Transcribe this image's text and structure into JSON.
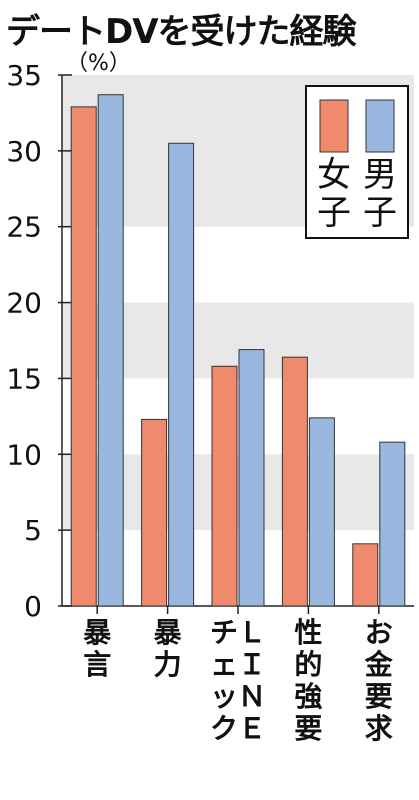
{
  "title": "デートDVを受けた経験",
  "chart_data": {
    "type": "bar",
    "title": "デートDVを受けた経験",
    "unit_label": "（%）",
    "categories": [
      "暴言",
      "暴力",
      "ＬＩＮＥチェック",
      "性的強要",
      "お金要求"
    ],
    "category_lines": [
      [
        "暴言"
      ],
      [
        "暴力"
      ],
      [
        "チェック",
        "ＬＩＮＥ"
      ],
      [
        "性的強要"
      ],
      [
        "お金要求"
      ]
    ],
    "series": [
      {
        "name": "女子",
        "color": "#f08a6c",
        "values": [
          32.9,
          12.3,
          15.8,
          16.4,
          4.1
        ]
      },
      {
        "name": "男子",
        "color": "#9ab7df",
        "values": [
          33.7,
          30.5,
          16.9,
          12.4,
          10.8
        ]
      }
    ],
    "ylim": [
      0,
      35
    ],
    "yticks": [
      0,
      5,
      10,
      15,
      20,
      25,
      30,
      35
    ],
    "grid_bands": true,
    "legend_position": "top-right"
  }
}
